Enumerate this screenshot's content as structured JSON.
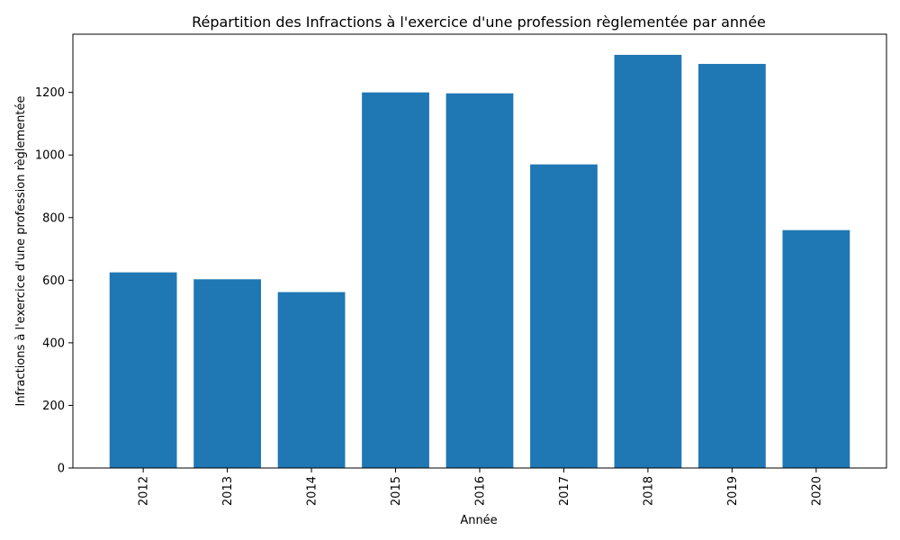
{
  "chart_data": {
    "type": "bar",
    "title": "Répartition des Infractions à l'exercice d'une profession règlementée par année",
    "xlabel": "Année",
    "ylabel": "Infractions à l'exercice d'une profession règlementée",
    "categories": [
      "2012",
      "2013",
      "2014",
      "2015",
      "2016",
      "2017",
      "2018",
      "2019",
      "2020"
    ],
    "values": [
      625,
      603,
      562,
      1200,
      1197,
      970,
      1320,
      1291,
      760
    ],
    "ylim": [
      0,
      1386
    ],
    "yticks": [
      0,
      200,
      400,
      600,
      800,
      1000,
      1200
    ],
    "grid": false,
    "bar_color": "#1f77b4"
  }
}
